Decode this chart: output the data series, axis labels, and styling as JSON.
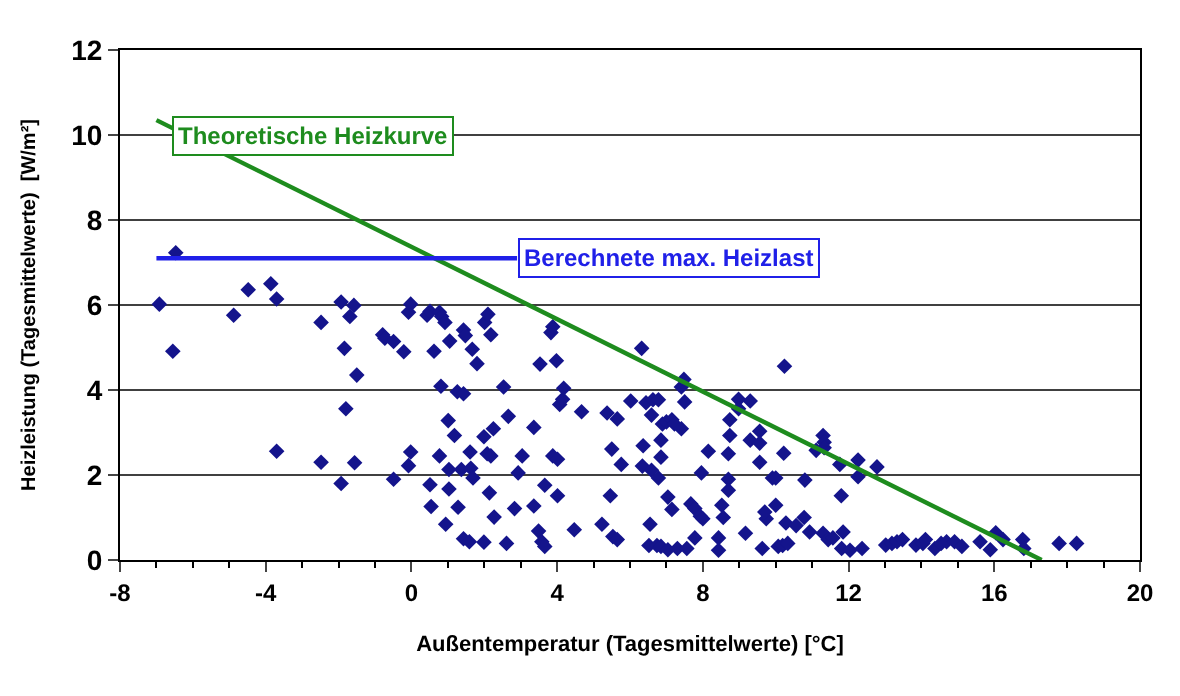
{
  "chart_data": {
    "type": "scatter",
    "xlabel": "Außentemperatur (Tagesmittelwerte) [°C]",
    "ylabel": "Heizleistung (Tagesmittelwerte)  [W/m²]",
    "xlim": [
      -8,
      20
    ],
    "xticks": [
      -8,
      -4,
      0,
      4,
      8,
      12,
      16,
      20
    ],
    "ylim": [
      0,
      12
    ],
    "yticks": [
      0,
      2,
      4,
      6,
      8,
      10,
      12
    ],
    "grid": "y",
    "legend": false,
    "series": [
      {
        "color": "#14148c",
        "marker": "diamond",
        "x": [
          -6.92,
          -6.47,
          -6.55,
          -4.88,
          -4.48,
          -3.86,
          -3.7,
          -3.7,
          -2.48,
          -2.48,
          -1.93,
          -1.84,
          -1.8,
          -1.93,
          -1.69,
          -1.58,
          -1.5,
          -1.56,
          -0.79,
          -0.73,
          -0.49,
          -0.21,
          -0.49,
          -0.08,
          -0.02,
          -0.02,
          -0.08,
          0.43,
          0.51,
          0.62,
          0.77,
          0.83,
          0.92,
          0.81,
          0.77,
          0.51,
          0.54,
          0.94,
          1.01,
          1.05,
          1.03,
          1.03,
          1.18,
          1.26,
          1.43,
          1.43,
          1.48,
          1.37,
          1.28,
          1.43,
          1.59,
          1.61,
          1.63,
          1.69,
          1.67,
          1.8,
          2.01,
          2.1,
          2.18,
          1.99,
          2.08,
          2.18,
          2.25,
          2.14,
          2.27,
          1.99,
          2.53,
          2.66,
          2.61,
          2.83,
          2.93,
          3.04,
          3.36,
          3.36,
          3.49,
          3.58,
          3.66,
          3.53,
          3.66,
          3.83,
          3.88,
          3.98,
          3.88,
          4.01,
          4.01,
          4.07,
          4.15,
          4.18,
          4.47,
          4.67,
          5.23,
          5.37,
          5.5,
          5.46,
          5.53,
          5.65,
          5.65,
          5.76,
          6.02,
          6.32,
          6.36,
          6.34,
          6.44,
          6.55,
          6.63,
          6.78,
          6.59,
          6.59,
          6.78,
          6.85,
          6.85,
          6.89,
          7.0,
          7.15,
          7.22,
          7.41,
          7.04,
          7.15,
          6.52,
          6.74,
          6.85,
          7.04,
          7.3,
          7.56,
          7.41,
          7.48,
          7.5,
          7.67,
          7.78,
          7.93,
          8.0,
          7.78,
          7.96,
          8.15,
          8.43,
          8.43,
          8.52,
          8.56,
          8.7,
          8.7,
          8.7,
          8.74,
          8.74,
          8.98,
          8.98,
          9.3,
          9.3,
          9.17,
          9.56,
          9.56,
          9.56,
          9.63,
          9.74,
          9.7,
          9.91,
          10.0,
          10.0,
          10.07,
          10.19,
          10.33,
          10.22,
          10.24,
          10.28,
          10.56,
          10.8,
          10.78,
          10.93,
          11.11,
          11.3,
          11.33,
          11.33,
          11.3,
          11.44,
          11.57,
          11.76,
          11.8,
          11.85,
          11.81,
          12.04,
          12.26,
          12.26,
          12.37,
          12.78,
          13.02,
          13.19,
          13.33,
          13.48,
          13.85,
          14.04,
          14.11,
          14.37,
          14.54,
          14.69,
          14.91,
          15.11,
          15.61,
          15.89,
          16.04,
          16.24,
          16.78,
          16.81,
          17.78,
          18.26
        ],
        "values": [
          6.02,
          7.23,
          4.91,
          5.76,
          6.36,
          6.5,
          6.14,
          2.56,
          5.59,
          2.3,
          6.07,
          4.98,
          3.56,
          1.8,
          5.73,
          5.99,
          4.35,
          2.29,
          5.3,
          5.22,
          5.14,
          4.9,
          1.9,
          5.83,
          6.02,
          2.54,
          2.22,
          5.76,
          5.85,
          4.91,
          5.83,
          5.73,
          5.59,
          4.09,
          2.45,
          1.77,
          1.26,
          0.84,
          3.28,
          5.15,
          2.13,
          1.67,
          2.93,
          3.96,
          3.91,
          5.41,
          5.28,
          2.13,
          1.24,
          0.5,
          0.43,
          2.54,
          2.16,
          1.93,
          4.96,
          4.62,
          5.59,
          5.78,
          5.3,
          2.9,
          2.5,
          2.45,
          3.09,
          1.58,
          1.01,
          0.42,
          4.07,
          3.38,
          0.39,
          1.21,
          2.05,
          2.45,
          3.12,
          1.27,
          0.68,
          0.43,
          0.32,
          4.61,
          1.76,
          5.35,
          5.49,
          4.69,
          2.45,
          2.37,
          1.51,
          3.66,
          3.78,
          4.04,
          0.71,
          3.49,
          0.84,
          3.46,
          2.61,
          1.51,
          0.55,
          0.48,
          3.32,
          2.25,
          3.74,
          4.98,
          2.69,
          2.21,
          3.7,
          0.84,
          3.77,
          3.77,
          3.41,
          2.11,
          1.93,
          2.42,
          2.82,
          3.2,
          3.25,
          3.3,
          3.2,
          3.09,
          1.48,
          1.19,
          0.34,
          0.34,
          0.32,
          0.24,
          0.27,
          0.27,
          4.07,
          4.25,
          3.72,
          1.32,
          1.21,
          1.03,
          0.97,
          0.52,
          2.05,
          2.56,
          0.52,
          0.23,
          1.29,
          1.0,
          1.9,
          1.64,
          2.5,
          2.93,
          3.3,
          3.78,
          3.56,
          3.74,
          2.82,
          0.63,
          3.03,
          2.75,
          2.3,
          0.27,
          0.97,
          1.13,
          1.93,
          1.93,
          1.29,
          0.32,
          0.34,
          0.39,
          2.51,
          4.56,
          0.87,
          0.81,
          1.88,
          1.0,
          0.66,
          2.58,
          2.93,
          2.77,
          2.64,
          0.63,
          0.48,
          0.52,
          2.25,
          1.51,
          0.66,
          0.27,
          0.23,
          2.35,
          1.96,
          0.27,
          2.19,
          0.35,
          0.39,
          0.43,
          0.48,
          0.35,
          0.39,
          0.48,
          0.27,
          0.39,
          0.43,
          0.43,
          0.32,
          0.43,
          0.24,
          0.64,
          0.48,
          0.48,
          0.27,
          0.39,
          0.39
        ]
      },
      {
        "type": "line",
        "name": "Theoretische Heizkurve",
        "color": "#1e8c1e",
        "x": [
          -7,
          17.3
        ],
        "values": [
          10.35,
          0
        ]
      },
      {
        "type": "line",
        "name": "Berechnete max. Heizlast",
        "color": "#2020e8",
        "x": [
          -7,
          2.9
        ],
        "values": [
          7.1,
          7.1
        ]
      }
    ]
  }
}
